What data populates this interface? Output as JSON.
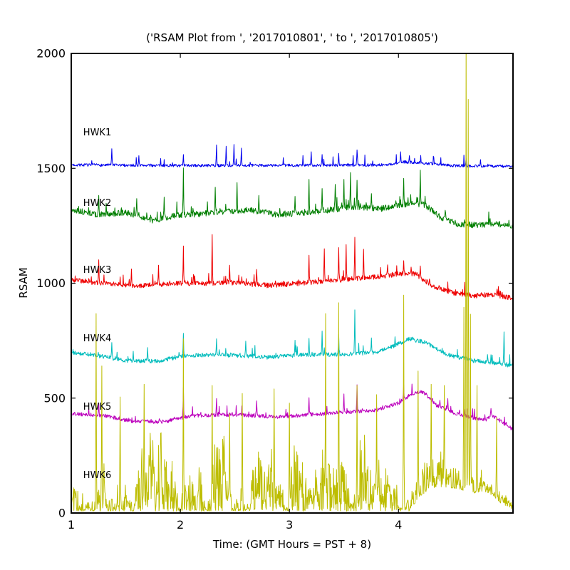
{
  "figure": {
    "background": "#ffffff",
    "axis_color": "#000000"
  },
  "chart_data": {
    "type": "line",
    "title": "('RSAM Plot from ', '2017010801', ' to ', '2017010805')",
    "grid": false,
    "legend": "inline-station-labels",
    "x_axis": {
      "label": "Time: (GMT Hours = PST + 8)",
      "min": 1.0,
      "max": 5.05,
      "ticks": [
        1,
        2,
        3,
        4
      ]
    },
    "y_axis": {
      "label": "RSAM",
      "min": 0,
      "max": 2000,
      "ticks": [
        0,
        500,
        1000,
        1500,
        2000
      ]
    },
    "series": [
      {
        "name": "HWK1",
        "color": "#0000ee",
        "label_pos": {
          "x": 1.11,
          "y": 1643
        },
        "mode": "noisy",
        "seed": 7,
        "noise": 6,
        "spike_rate": 0.05,
        "spike_max": 45,
        "envelope": [
          [
            1.0,
            1515
          ],
          [
            2.0,
            1512
          ],
          [
            3.0,
            1513
          ],
          [
            3.9,
            1515
          ],
          [
            4.05,
            1528
          ],
          [
            4.2,
            1524
          ],
          [
            4.5,
            1512
          ],
          [
            5.05,
            1508
          ]
        ],
        "spikes": [
          [
            1.37,
            1585
          ],
          [
            1.62,
            1555
          ],
          [
            2.03,
            1560
          ],
          [
            2.33,
            1602
          ],
          [
            2.42,
            1596
          ],
          [
            2.49,
            1604
          ],
          [
            2.56,
            1588
          ],
          [
            3.2,
            1572
          ],
          [
            3.3,
            1560
          ],
          [
            3.45,
            1565
          ],
          [
            3.62,
            1580
          ],
          [
            4.02,
            1572
          ],
          [
            4.1,
            1555
          ],
          [
            4.62,
            1545
          ],
          [
            4.75,
            1538
          ]
        ]
      },
      {
        "name": "HWK2",
        "color": "#007f00",
        "label_pos": {
          "x": 1.11,
          "y": 1336
        },
        "mode": "noisy",
        "seed": 13,
        "noise": 13,
        "spike_rate": 0.1,
        "spike_max": 55,
        "envelope": [
          [
            1.0,
            1320
          ],
          [
            1.25,
            1298
          ],
          [
            1.5,
            1308
          ],
          [
            1.75,
            1272
          ],
          [
            1.95,
            1295
          ],
          [
            2.2,
            1302
          ],
          [
            2.45,
            1315
          ],
          [
            2.65,
            1318
          ],
          [
            2.9,
            1298
          ],
          [
            3.1,
            1305
          ],
          [
            3.35,
            1318
          ],
          [
            3.6,
            1332
          ],
          [
            3.85,
            1325
          ],
          [
            4.0,
            1338
          ],
          [
            4.15,
            1348
          ],
          [
            4.25,
            1340
          ],
          [
            4.4,
            1282
          ],
          [
            4.55,
            1258
          ],
          [
            4.75,
            1252
          ],
          [
            4.9,
            1260
          ],
          [
            5.05,
            1248
          ]
        ],
        "spikes": [
          [
            1.25,
            1382
          ],
          [
            1.6,
            1368
          ],
          [
            1.85,
            1375
          ],
          [
            2.03,
            1502
          ],
          [
            2.32,
            1418
          ],
          [
            2.52,
            1438
          ],
          [
            2.72,
            1382
          ],
          [
            3.05,
            1378
          ],
          [
            3.18,
            1452
          ],
          [
            3.3,
            1412
          ],
          [
            3.42,
            1430
          ],
          [
            3.5,
            1452
          ],
          [
            3.56,
            1482
          ],
          [
            3.62,
            1448
          ],
          [
            3.75,
            1390
          ],
          [
            4.05,
            1456
          ],
          [
            4.2,
            1492
          ]
        ]
      },
      {
        "name": "HWK3",
        "color": "#ee0000",
        "label_pos": {
          "x": 1.11,
          "y": 1045
        },
        "mode": "noisy",
        "seed": 21,
        "noise": 11,
        "spike_rate": 0.09,
        "spike_max": 50,
        "envelope": [
          [
            1.0,
            1015
          ],
          [
            1.3,
            1000
          ],
          [
            1.6,
            988
          ],
          [
            1.9,
            998
          ],
          [
            2.2,
            1000
          ],
          [
            2.5,
            1002
          ],
          [
            2.8,
            990
          ],
          [
            3.05,
            998
          ],
          [
            3.3,
            1008
          ],
          [
            3.55,
            1018
          ],
          [
            3.8,
            1028
          ],
          [
            4.0,
            1040
          ],
          [
            4.15,
            1042
          ],
          [
            4.3,
            992
          ],
          [
            4.5,
            958
          ],
          [
            4.7,
            945
          ],
          [
            4.85,
            952
          ],
          [
            5.05,
            935
          ]
        ],
        "spikes": [
          [
            1.25,
            1102
          ],
          [
            1.55,
            1062
          ],
          [
            1.8,
            1078
          ],
          [
            2.03,
            1162
          ],
          [
            2.29,
            1212
          ],
          [
            2.45,
            1078
          ],
          [
            2.7,
            1060
          ],
          [
            3.18,
            1122
          ],
          [
            3.32,
            1150
          ],
          [
            3.45,
            1155
          ],
          [
            3.52,
            1168
          ],
          [
            3.6,
            1200
          ],
          [
            3.68,
            1148
          ],
          [
            3.9,
            1080
          ],
          [
            4.05,
            1098
          ],
          [
            4.2,
            1075
          ]
        ]
      },
      {
        "name": "HWK4",
        "color": "#00bcbc",
        "label_pos": {
          "x": 1.11,
          "y": 747
        },
        "mode": "noisy",
        "seed": 29,
        "noise": 9,
        "spike_rate": 0.07,
        "spike_max": 42,
        "envelope": [
          [
            1.0,
            700
          ],
          [
            1.2,
            688
          ],
          [
            1.5,
            664
          ],
          [
            1.8,
            660
          ],
          [
            2.05,
            686
          ],
          [
            2.4,
            688
          ],
          [
            2.8,
            678
          ],
          [
            3.1,
            688
          ],
          [
            3.5,
            690
          ],
          [
            3.8,
            700
          ],
          [
            3.95,
            725
          ],
          [
            4.1,
            758
          ],
          [
            4.25,
            742
          ],
          [
            4.45,
            688
          ],
          [
            4.7,
            662
          ],
          [
            4.9,
            652
          ],
          [
            5.05,
            640
          ]
        ],
        "spikes": [
          [
            1.37,
            742
          ],
          [
            1.7,
            720
          ],
          [
            2.03,
            782
          ],
          [
            2.33,
            758
          ],
          [
            2.6,
            748
          ],
          [
            3.05,
            752
          ],
          [
            3.18,
            760
          ],
          [
            3.3,
            792
          ],
          [
            3.45,
            778
          ],
          [
            3.6,
            884
          ],
          [
            3.75,
            762
          ],
          [
            4.97,
            788
          ]
        ]
      },
      {
        "name": "HWK5",
        "color": "#bc00bc",
        "label_pos": {
          "x": 1.11,
          "y": 450
        },
        "mode": "noisy",
        "seed": 37,
        "noise": 8,
        "spike_rate": 0.08,
        "spike_max": 38,
        "envelope": [
          [
            1.0,
            432
          ],
          [
            1.3,
            424
          ],
          [
            1.55,
            400
          ],
          [
            1.85,
            396
          ],
          [
            2.1,
            424
          ],
          [
            2.5,
            428
          ],
          [
            2.9,
            418
          ],
          [
            3.2,
            428
          ],
          [
            3.5,
            438
          ],
          [
            3.8,
            448
          ],
          [
            4.0,
            478
          ],
          [
            4.12,
            518
          ],
          [
            4.22,
            528
          ],
          [
            4.35,
            468
          ],
          [
            4.5,
            438
          ],
          [
            4.65,
            418
          ],
          [
            4.8,
            405
          ],
          [
            4.85,
            428
          ],
          [
            5.05,
            362
          ]
        ],
        "spikes": [
          [
            1.25,
            478
          ],
          [
            2.03,
            545
          ],
          [
            2.33,
            498
          ],
          [
            2.7,
            488
          ],
          [
            3.18,
            502
          ],
          [
            3.5,
            518
          ],
          [
            3.62,
            558
          ],
          [
            4.05,
            558
          ],
          [
            4.45,
            498
          ],
          [
            4.85,
            455
          ]
        ]
      },
      {
        "name": "HWK6",
        "color": "#bdbd00",
        "label_pos": {
          "x": 1.11,
          "y": 152
        },
        "mode": "burst",
        "seed": 45,
        "floor": [
          [
            1.0,
            8
          ],
          [
            4.1,
            8
          ],
          [
            4.2,
            75
          ],
          [
            4.35,
            115
          ],
          [
            4.55,
            105
          ],
          [
            4.68,
            85
          ],
          [
            4.78,
            95
          ],
          [
            4.88,
            70
          ],
          [
            4.95,
            35
          ],
          [
            5.05,
            15
          ]
        ],
        "amp": [
          [
            1.0,
            340
          ],
          [
            1.5,
            350
          ],
          [
            2.0,
            340
          ],
          [
            2.5,
            350
          ],
          [
            3.0,
            340
          ],
          [
            3.5,
            350
          ],
          [
            4.0,
            340
          ],
          [
            4.15,
            250
          ],
          [
            4.25,
            175
          ],
          [
            4.5,
            170
          ],
          [
            4.75,
            150
          ],
          [
            4.9,
            95
          ],
          [
            5.05,
            35
          ]
        ],
        "spikes": [
          [
            1.23,
            868
          ],
          [
            1.28,
            640
          ],
          [
            1.45,
            505
          ],
          [
            1.67,
            560
          ],
          [
            2.03,
            758
          ],
          [
            2.29,
            555
          ],
          [
            2.45,
            432
          ],
          [
            2.57,
            520
          ],
          [
            2.86,
            540
          ],
          [
            3.0,
            478
          ],
          [
            3.33,
            868
          ],
          [
            3.45,
            915
          ],
          [
            3.62,
            555
          ],
          [
            3.8,
            515
          ],
          [
            4.05,
            948
          ],
          [
            4.18,
            618
          ],
          [
            4.3,
            560
          ],
          [
            4.42,
            555
          ],
          [
            4.6,
            895
          ],
          [
            4.62,
            2050
          ],
          [
            4.64,
            1800
          ],
          [
            4.66,
            865
          ],
          [
            4.72,
            555
          ],
          [
            4.9,
            415
          ]
        ]
      }
    ]
  }
}
